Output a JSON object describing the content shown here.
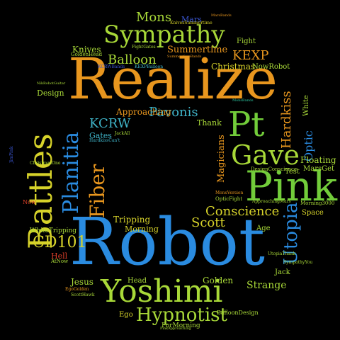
{
  "cloud": {
    "realize": "Realize",
    "robot": "Robot",
    "battles": "Battles",
    "pink": "Pink",
    "yoshimi": "Yoshimi",
    "sympathy": "Sympathy",
    "planitia": "Planitia",
    "pt": "Pt",
    "gave": "Gave",
    "fiber": "Fiber",
    "utopia": "Utopia",
    "hypnotist": "Hypnotist",
    "conscience": "Conscience",
    "cd101": "CD101",
    "pavonis": "Pavonis",
    "kcrw": "KCRW",
    "balloon": "Balloon",
    "mons": "Mons",
    "kexp": "KEXP",
    "scott": "Scott",
    "hardkiss": "Hardkiss",
    "optic": "Optic",
    "magicians": "Magicians",
    "strange": "Strange",
    "knives": "Knives",
    "summertime": "Summertime",
    "christmas": "Christmas",
    "approaching": "Approaching",
    "floating": "Floating",
    "tripping": "Tripping",
    "morning": "Morning",
    "golden": "Golden",
    "jesus": "Jesus",
    "design": "Design",
    "gates": "Gates",
    "thank": "Thank",
    "white": "White",
    "mars": "Mars",
    "fight": "Fight",
    "hell": "Hell",
    "head": "Head",
    "ego": "Ego",
    "jack": "Jack",
    "space": "Space",
    "test": "Test",
    "age": "Age",
    "now_robot": "NowRobot",
    "now": "Now",
    "marsget": "MarsGet",
    "white_tripping": "WhiteTripping",
    "for_morning": "ForMorning",
    "balloon_design": "BalloonDesign",
    "design_conscience": "DesignConscience",
    "golden_head": "GoldenHead",
    "fight_gates": "FightGates",
    "ego_golden": "EgoGolden",
    "morning3000": "Morning3000",
    "knives_summertime": "KnivesSummertime",
    "optic_fight": "OpticFight",
    "mons_version": "MonsVersion",
    "approaching_mars": "ApproachingMars",
    "christmas_one": "ChristmasOne",
    "sympathy_you": "SympathyYou",
    "utopia_thank": "UtopiaThank",
    "jack_all": "JackAll",
    "at_now": "AtNow",
    "kcrw_bands": "KCRWBands",
    "hardkiss_cant": "HardkissCan't",
    "jimpink": "JimPink",
    "pink_approaching": "PinkApproaching",
    "scott_hawk": "ScottHawk",
    "kexp_balloon": "KEXPBalloon",
    "nikrobotguitar": "NikRobotGuitar",
    "summertime_bands": "SummertimeBands",
    "mons_bands": "MonsBands",
    "mars_bands": "MarsBands"
  },
  "colors": {
    "blue": "#2a8be0",
    "orange": "#e8961e",
    "yellow": "#d6d22a",
    "green": "#72cc3a",
    "teal": "#2bc5a0",
    "cyan": "#3fb4c8",
    "lime": "#a8d838",
    "red": "#e0402a",
    "navy": "#3a55d0",
    "grey": "#b0b0b0"
  }
}
